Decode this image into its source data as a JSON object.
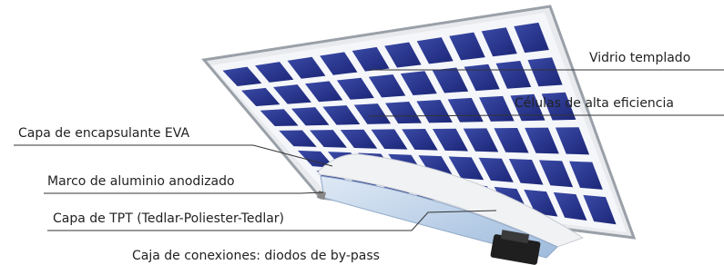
{
  "labels": [
    {
      "text": "Vidrio templado"
    },
    {
      "text": "Células de alta eficiencia"
    },
    {
      "text": "Capa de encapsulante EVA"
    },
    {
      "text": "Marco de aluminio anodizado"
    },
    {
      "text": "Capa de TPT (Tedlar-Poliester-Tedlar)"
    },
    {
      "text": "Caja de conexiones: diodos de by-pass"
    }
  ]
}
